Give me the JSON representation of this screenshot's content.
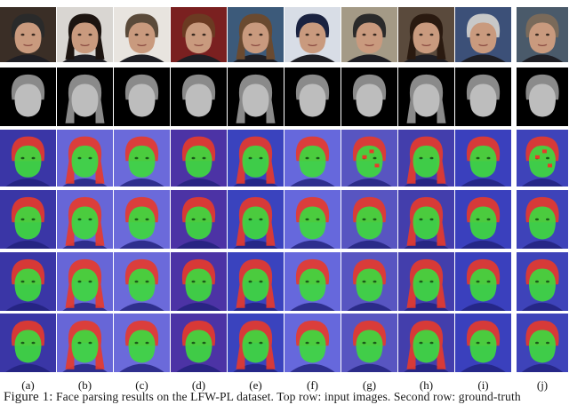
{
  "figure": {
    "columns": [
      {
        "label": "(a)",
        "hue": "#2a2a2a",
        "bg": "#3a2e26"
      },
      {
        "label": "(b)",
        "hue": "#1c1410",
        "bg": "#d9d6d2"
      },
      {
        "label": "(c)",
        "hue": "#5a4a3a",
        "bg": "#e8e4df"
      },
      {
        "label": "(d)",
        "hue": "#6b3a22",
        "bg": "#7a2020"
      },
      {
        "label": "(e)",
        "hue": "#6a4a30",
        "bg": "#3c5a7a"
      },
      {
        "label": "(f)",
        "hue": "#1a2240",
        "bg": "#d8dde6"
      },
      {
        "label": "(g)",
        "hue": "#2a2a2a",
        "bg": "#a49a86"
      },
      {
        "label": "(h)",
        "hue": "#2a1a10",
        "bg": "#5a4a3c"
      },
      {
        "label": "(i)",
        "hue": "#c8c8c8",
        "bg": "#3c5078"
      },
      {
        "label": "(j)",
        "hue": "#7a6a5a",
        "bg": "#4a5a6a"
      }
    ],
    "row_types": [
      "input",
      "mask",
      "parse",
      "parse",
      "parse",
      "parse"
    ],
    "colors": {
      "skin_overlay": "#3fd83f",
      "hair_overlay": "#e83a2a",
      "background_overlay": "#3a3ad8",
      "mask_face": "#bdbdbd",
      "mask_hair": "#8a8a8a",
      "mask_bg": "#000000"
    },
    "caption": {
      "prefix": "Figure 1:",
      "text": "Face parsing results on the LFW-PL dataset. Top row: input images. Second row: ground-truth"
    }
  }
}
